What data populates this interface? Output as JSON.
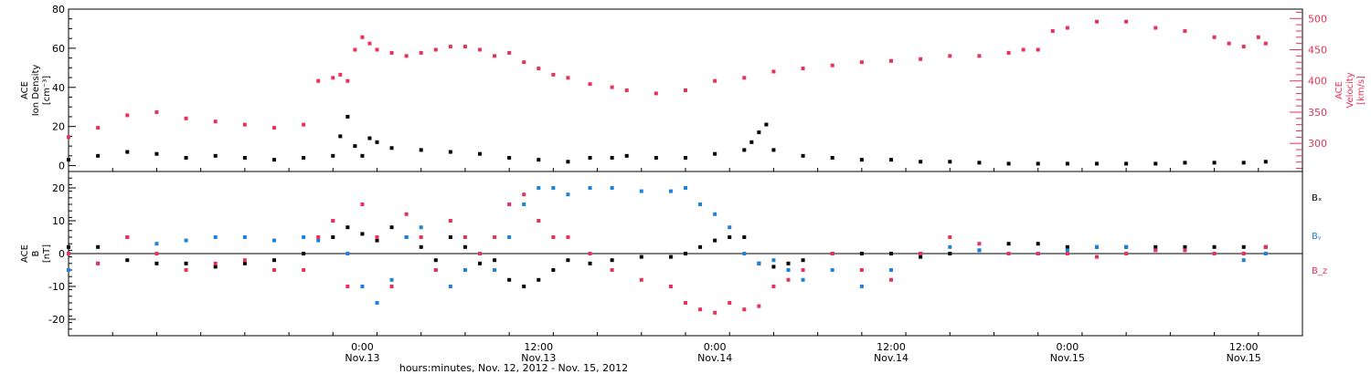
{
  "colors": {
    "axis": "#000000",
    "density": "#000000",
    "velocity": "#e8325a",
    "bx": "#000000",
    "by": "#1e82dc",
    "bz": "#e8325a"
  },
  "x_axis": {
    "label": "hours:minutes, Nov. 12, 2012 - Nov. 15, 2012",
    "range_hours": [
      -20,
      64
    ],
    "ticks": [
      {
        "hour": 0,
        "time": "0:00",
        "date": "Nov.13"
      },
      {
        "hour": 12,
        "time": "12:00",
        "date": "Nov.13"
      },
      {
        "hour": 24,
        "time": "0:00",
        "date": "Nov.14"
      },
      {
        "hour": 36,
        "time": "12:00",
        "date": "Nov.14"
      },
      {
        "hour": 48,
        "time": "0:00",
        "date": "Nov.15"
      },
      {
        "hour": 60,
        "time": "12:00",
        "date": "Nov.15"
      }
    ]
  },
  "panel_top": {
    "left_axis": {
      "label_lines": [
        "ACE",
        "Ion Density",
        "[cm⁻³]"
      ],
      "range": [
        -3,
        80
      ],
      "ticks": [
        0,
        20,
        40,
        60,
        80
      ]
    },
    "right_axis": {
      "label_lines": [
        "ACE",
        "Velocity",
        "[km/s]"
      ],
      "range": [
        255,
        515
      ],
      "ticks": [
        300,
        350,
        400,
        450,
        500
      ]
    }
  },
  "panel_bottom": {
    "left_axis": {
      "label_lines": [
        "ACE",
        "B",
        "[nT]"
      ],
      "range": [
        -25,
        25
      ],
      "ticks": [
        -20,
        -10,
        0,
        10,
        20
      ]
    },
    "legend": [
      "Bₓ",
      "Bᵧ",
      "B_z"
    ]
  },
  "chart_data": [
    {
      "type": "scatter",
      "title": "",
      "xlabel": "hours:minutes, Nov. 12, 2012 - Nov. 15, 2012",
      "ylabel": "ACE Ion Density [cm⁻³]",
      "ylabel_right": "ACE Velocity [km/s]",
      "xlim": [
        -20,
        64
      ],
      "ylim": [
        -3,
        80
      ],
      "ylim_right": [
        255,
        515
      ],
      "grid": false,
      "series": [
        {
          "name": "Ion Density",
          "axis": "left",
          "x": [
            -20,
            -18,
            -16,
            -14,
            -12,
            -10,
            -8,
            -6,
            -4,
            -2,
            -1.5,
            -1,
            -0.5,
            0,
            0.5,
            1,
            2,
            4,
            6,
            8,
            10,
            12,
            14,
            15.5,
            17,
            18,
            20,
            22,
            24,
            26,
            26.5,
            27,
            27.5,
            28,
            30,
            32,
            34,
            36,
            38,
            40,
            42,
            44,
            46,
            48,
            50,
            52,
            54,
            56,
            58,
            60,
            61.5
          ],
          "y": [
            3,
            5,
            7,
            6,
            4,
            5,
            4,
            3,
            4,
            5,
            15,
            25,
            10,
            5,
            14,
            12,
            9,
            8,
            7,
            6,
            4,
            3,
            2,
            4,
            4,
            5,
            4,
            4,
            6,
            8,
            12,
            17,
            21,
            8,
            5,
            4,
            3,
            3,
            2,
            2,
            1.5,
            1,
            1,
            1,
            1,
            1,
            1,
            1.5,
            1.5,
            1.5,
            2
          ]
        },
        {
          "name": "Velocity",
          "axis": "right",
          "x": [
            -20,
            -18,
            -16,
            -14,
            -12,
            -10,
            -8,
            -6,
            -4,
            -3,
            -2,
            -1.5,
            -1,
            -0.5,
            0,
            0.5,
            1,
            2,
            3,
            4,
            5,
            6,
            7,
            8,
            9,
            10,
            11,
            12,
            13,
            14,
            15.5,
            17,
            18,
            20,
            22,
            24,
            26,
            28,
            30,
            32,
            34,
            36,
            38,
            40,
            42,
            44,
            45,
            46,
            47,
            48,
            50,
            52,
            54,
            56,
            58,
            59,
            60,
            61,
            61.5
          ],
          "y": [
            310,
            325,
            345,
            350,
            340,
            335,
            330,
            325,
            330,
            400,
            405,
            410,
            400,
            450,
            470,
            460,
            450,
            445,
            440,
            445,
            450,
            455,
            455,
            450,
            440,
            445,
            430,
            420,
            410,
            405,
            395,
            390,
            385,
            380,
            385,
            400,
            405,
            415,
            420,
            425,
            430,
            432,
            435,
            440,
            440,
            445,
            450,
            450,
            480,
            485,
            495,
            495,
            485,
            480,
            470,
            460,
            455,
            470,
            460
          ]
        }
      ]
    },
    {
      "type": "scatter",
      "title": "",
      "xlabel": "hours:minutes, Nov. 12, 2012 - Nov. 15, 2012",
      "ylabel": "ACE B [nT]",
      "xlim": [
        -20,
        64
      ],
      "ylim": [
        -25,
        25
      ],
      "grid": false,
      "reference_line_y": 0,
      "series": [
        {
          "name": "Bₓ",
          "x": [
            -20,
            -18,
            -16,
            -14,
            -12,
            -10,
            -8,
            -6,
            -4,
            -2,
            -1,
            0,
            1,
            2,
            3,
            4,
            5,
            6,
            7,
            8,
            9,
            10,
            11,
            12,
            13,
            14,
            15.5,
            17,
            19,
            21,
            22,
            23,
            24,
            25,
            26,
            27,
            28,
            29,
            30,
            32,
            34,
            36,
            38,
            40,
            42,
            44,
            46,
            48,
            50,
            52,
            54,
            56,
            58,
            60,
            61.5
          ],
          "y": [
            2,
            2,
            -2,
            -3,
            -3,
            -4,
            -3,
            -2,
            0,
            5,
            8,
            6,
            4,
            8,
            5,
            2,
            -2,
            5,
            2,
            -3,
            -2,
            -8,
            -10,
            -8,
            -5,
            -2,
            -3,
            -2,
            -1,
            -1,
            0,
            2,
            4,
            5,
            5,
            -3,
            -4,
            -3,
            -2,
            0,
            0,
            0,
            -1,
            0,
            1,
            3,
            3,
            2,
            2,
            2,
            2,
            2,
            2,
            2,
            2
          ]
        },
        {
          "name": "Bᵧ",
          "x": [
            -20,
            -18,
            -16,
            -14,
            -12,
            -10,
            -8,
            -6,
            -4,
            -3,
            -2,
            -1,
            0,
            1,
            2,
            3,
            4,
            5,
            6,
            7,
            8,
            9,
            10,
            11,
            12,
            13,
            14,
            15.5,
            17,
            19,
            21,
            22,
            23,
            24,
            25,
            26,
            27,
            28,
            29,
            30,
            32,
            34,
            36,
            38,
            40,
            42,
            44,
            46,
            48,
            50,
            52,
            54,
            56,
            58,
            60,
            61.5
          ],
          "y": [
            -5,
            -3,
            5,
            3,
            4,
            5,
            5,
            4,
            5,
            4,
            10,
            0,
            -10,
            -15,
            -8,
            5,
            8,
            -5,
            -10,
            -5,
            0,
            -5,
            5,
            15,
            20,
            20,
            18,
            20,
            20,
            19,
            19,
            20,
            15,
            12,
            8,
            0,
            -3,
            -2,
            -5,
            -8,
            -5,
            -10,
            -5,
            0,
            2,
            1,
            0,
            0,
            1,
            2,
            2,
            1,
            1,
            0,
            -2,
            0
          ]
        },
        {
          "name": "B_z",
          "x": [
            -20,
            -18,
            -16,
            -14,
            -12,
            -10,
            -8,
            -6,
            -4,
            -3,
            -2,
            -1,
            0,
            1,
            2,
            3,
            4,
            5,
            6,
            7,
            8,
            9,
            10,
            11,
            12,
            13,
            14,
            15.5,
            17,
            19,
            21,
            22,
            23,
            24,
            25,
            26,
            27,
            28,
            29,
            30,
            32,
            34,
            36,
            38,
            40,
            42,
            44,
            46,
            48,
            50,
            52,
            54,
            56,
            58,
            60,
            61.5
          ],
          "y": [
            0,
            -3,
            5,
            0,
            -5,
            -3,
            -2,
            -5,
            -5,
            5,
            10,
            -10,
            15,
            5,
            -10,
            12,
            5,
            -5,
            10,
            5,
            0,
            5,
            15,
            18,
            10,
            5,
            5,
            0,
            -5,
            -8,
            -10,
            -15,
            -17,
            -18,
            -15,
            -17,
            -16,
            -10,
            -8,
            -5,
            0,
            -5,
            -8,
            0,
            5,
            3,
            0,
            0,
            0,
            -1,
            0,
            1,
            1,
            0,
            0,
            2
          ]
        }
      ]
    }
  ]
}
